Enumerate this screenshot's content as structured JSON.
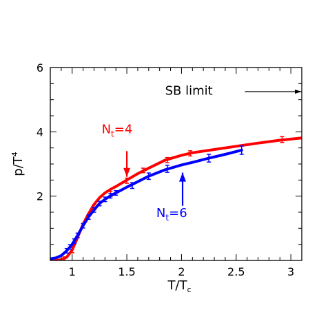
{
  "chart_data": {
    "type": "line",
    "xlabel": "T/T",
    "xlabel_sub": "c",
    "ylabel": "p/T",
    "ylabel_sup": "4",
    "xlim": [
      0.8,
      3.1
    ],
    "ylim": [
      0,
      6
    ],
    "x_ticks": [
      1,
      1.5,
      2,
      2.5,
      3
    ],
    "x_tick_labels": [
      "1",
      "1.5",
      "2",
      "2.5",
      "3"
    ],
    "y_ticks": [
      2,
      4,
      6
    ],
    "y_tick_labels": [
      "2",
      "4",
      "6"
    ],
    "series": [
      {
        "name": "N_t=4",
        "color": "#ff0000",
        "x": [
          0.8,
          0.9,
          0.95,
          1.0,
          1.05,
          1.1,
          1.15,
          1.2,
          1.25,
          1.3,
          1.35,
          1.4,
          1.5,
          1.6,
          1.7,
          1.85,
          2.0,
          2.1,
          2.3,
          2.5,
          2.7,
          2.9,
          3.1
        ],
        "y": [
          0.0,
          0.02,
          0.1,
          0.32,
          0.72,
          1.13,
          1.45,
          1.74,
          1.95,
          2.1,
          2.21,
          2.3,
          2.5,
          2.7,
          2.87,
          3.12,
          3.27,
          3.35,
          3.45,
          3.55,
          3.65,
          3.74,
          3.81
        ],
        "points": [
          {
            "x": 0.93,
            "y": 0.05,
            "err": 0.06
          },
          {
            "x": 1.0,
            "y": 0.32,
            "err": 0.08
          },
          {
            "x": 1.2,
            "y": 1.65,
            "err": 0.08
          },
          {
            "x": 1.35,
            "y": 2.07,
            "err": 0.08
          },
          {
            "x": 1.5,
            "y": 2.48,
            "err": 0.08
          },
          {
            "x": 1.65,
            "y": 2.8,
            "err": 0.07
          },
          {
            "x": 1.87,
            "y": 3.12,
            "err": 0.08
          },
          {
            "x": 2.08,
            "y": 3.33,
            "err": 0.08
          },
          {
            "x": 2.92,
            "y": 3.76,
            "err": 0.09
          }
        ]
      },
      {
        "name": "N_t=6",
        "color": "#0000ff",
        "x": [
          0.8,
          0.85,
          0.9,
          0.95,
          1.0,
          1.05,
          1.1,
          1.15,
          1.2,
          1.25,
          1.3,
          1.35,
          1.4,
          1.5,
          1.6,
          1.7,
          1.85,
          2.0,
          2.1,
          2.25,
          2.4,
          2.55
        ],
        "y": [
          0.05,
          0.08,
          0.15,
          0.3,
          0.5,
          0.78,
          1.08,
          1.35,
          1.57,
          1.77,
          1.9,
          2.01,
          2.1,
          2.28,
          2.45,
          2.62,
          2.82,
          2.97,
          3.05,
          3.18,
          3.3,
          3.43
        ],
        "points": [
          {
            "x": 0.95,
            "y": 0.3,
            "err": 0.07
          },
          {
            "x": 0.98,
            "y": 0.42,
            "err": 0.07
          },
          {
            "x": 1.02,
            "y": 0.6,
            "err": 0.07
          },
          {
            "x": 1.05,
            "y": 0.78,
            "err": 0.07
          },
          {
            "x": 1.1,
            "y": 1.08,
            "err": 0.07
          },
          {
            "x": 1.15,
            "y": 1.35,
            "err": 0.07
          },
          {
            "x": 1.2,
            "y": 1.57,
            "err": 0.07
          },
          {
            "x": 1.25,
            "y": 1.77,
            "err": 0.07
          },
          {
            "x": 1.3,
            "y": 1.9,
            "err": 0.07
          },
          {
            "x": 1.35,
            "y": 2.01,
            "err": 0.07
          },
          {
            "x": 1.4,
            "y": 2.1,
            "err": 0.07
          },
          {
            "x": 1.55,
            "y": 2.33,
            "err": 0.09
          },
          {
            "x": 1.7,
            "y": 2.62,
            "err": 0.1
          },
          {
            "x": 1.87,
            "y": 2.85,
            "err": 0.11
          },
          {
            "x": 2.25,
            "y": 3.18,
            "err": 0.12
          },
          {
            "x": 2.55,
            "y": 3.43,
            "err": 0.13
          }
        ]
      }
    ],
    "annotations": [
      {
        "id": "nt4",
        "label": "N",
        "sub": "t",
        "rest": "=4",
        "color": "#ff0000",
        "text_x": 1.27,
        "text_y": 3.95,
        "arrow_from": [
          1.5,
          3.4
        ],
        "arrow_to": [
          1.5,
          2.6
        ]
      },
      {
        "id": "nt6",
        "label": "N",
        "sub": "t",
        "rest": "=6",
        "color": "#0000ff",
        "text_x": 1.77,
        "text_y": 1.35,
        "arrow_from": [
          2.01,
          1.7
        ],
        "arrow_to": [
          2.01,
          2.73
        ]
      },
      {
        "id": "sb",
        "label": "SB limit",
        "color": "#000000",
        "text_x": 1.85,
        "text_y": 5.15,
        "arrow_from": [
          2.58,
          5.25
        ],
        "arrow_to": [
          3.1,
          5.25
        ]
      }
    ]
  }
}
